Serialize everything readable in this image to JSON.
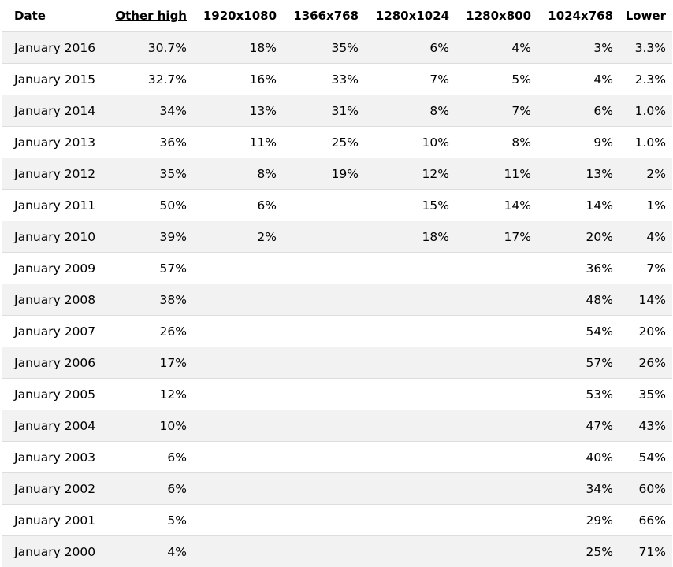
{
  "table": {
    "columns": [
      "Date",
      "Other high",
      "1920x1080",
      "1366x768",
      "1280x1024",
      "1280x800",
      "1024x768",
      "Lower"
    ],
    "rows": [
      [
        "January 2016",
        "30.7%",
        "18%",
        "35%",
        "6%",
        "4%",
        "3%",
        "3.3%"
      ],
      [
        "January 2015",
        "32.7%",
        "16%",
        "33%",
        "7%",
        "5%",
        "4%",
        "2.3%"
      ],
      [
        "January 2014",
        "34%",
        "13%",
        "31%",
        "8%",
        "7%",
        "6%",
        "1.0%"
      ],
      [
        "January 2013",
        "36%",
        "11%",
        "25%",
        "10%",
        "8%",
        "9%",
        "1.0%"
      ],
      [
        "January 2012",
        "35%",
        "8%",
        "19%",
        "12%",
        "11%",
        "13%",
        "2%"
      ],
      [
        "January 2011",
        "50%",
        "6%",
        "",
        "15%",
        "14%",
        "14%",
        "1%"
      ],
      [
        "January 2010",
        "39%",
        "2%",
        "",
        "18%",
        "17%",
        "20%",
        "4%"
      ],
      [
        "January 2009",
        "57%",
        "",
        "",
        "",
        "",
        "36%",
        "7%"
      ],
      [
        "January 2008",
        "38%",
        "",
        "",
        "",
        "",
        "48%",
        "14%"
      ],
      [
        "January 2007",
        "26%",
        "",
        "",
        "",
        "",
        "54%",
        "20%"
      ],
      [
        "January 2006",
        "17%",
        "",
        "",
        "",
        "",
        "57%",
        "26%"
      ],
      [
        "January 2005",
        "12%",
        "",
        "",
        "",
        "",
        "53%",
        "35%"
      ],
      [
        "January 2004",
        "10%",
        "",
        "",
        "",
        "",
        "47%",
        "43%"
      ],
      [
        "January 2003",
        "6%",
        "",
        "",
        "",
        "",
        "40%",
        "54%"
      ],
      [
        "January 2002",
        "6%",
        "",
        "",
        "",
        "",
        "34%",
        "60%"
      ],
      [
        "January 2001",
        "5%",
        "",
        "",
        "",
        "",
        "29%",
        "66%"
      ],
      [
        "January 2000",
        "4%",
        "",
        "",
        "",
        "",
        "25%",
        "71%"
      ]
    ]
  }
}
